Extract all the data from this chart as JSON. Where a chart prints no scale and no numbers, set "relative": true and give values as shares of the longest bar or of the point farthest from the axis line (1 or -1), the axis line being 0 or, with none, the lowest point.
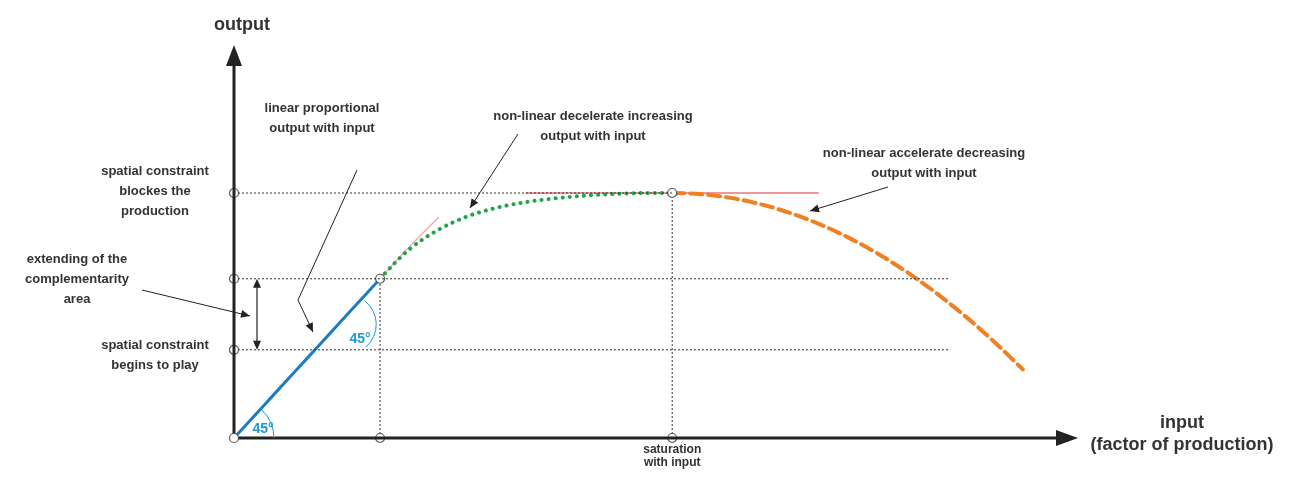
{
  "chart_data": {
    "type": "line",
    "relative": true,
    "xlabel": "input (factor of production)",
    "categories": [
      null,
      null,
      null,
      null,
      null,
      null,
      null,
      null,
      null,
      null,
      null,
      null,
      null,
      null,
      null,
      null,
      null,
      null,
      null,
      null,
      null,
      null,
      null,
      null,
      null,
      null,
      null,
      null,
      null
    ],
    "series": [
      {
        "color": "#1b7cc3",
        "line_style": "solid",
        "values": [
          0,
          0.13,
          0.26,
          0.39,
          0.52,
          0.65,
          null,
          null,
          null,
          null,
          null,
          null,
          null,
          null,
          null,
          null,
          null,
          null,
          null,
          null,
          null,
          null,
          null,
          null,
          null,
          null,
          null,
          null,
          null
        ]
      },
      {
        "color": "#f3a0a5",
        "line_style": "solid",
        "values": [
          null,
          null,
          null,
          null,
          null,
          0.65,
          0.78,
          0.9,
          null,
          null,
          null,
          null,
          null,
          null,
          null,
          null,
          null,
          null,
          null,
          null,
          null,
          null,
          null,
          null,
          null,
          null,
          null,
          null,
          null
        ]
      },
      {
        "color": "#e0303a",
        "line_style": "solid",
        "values": [
          null,
          null,
          null,
          null,
          null,
          null,
          null,
          null,
          null,
          null,
          1,
          1,
          1,
          1,
          1,
          1,
          1,
          1,
          1,
          1,
          1,
          null,
          null,
          null,
          null,
          null,
          null,
          null,
          null
        ]
      },
      {
        "color": "#20a34a",
        "line_style": "dotted",
        "values": [
          null,
          null,
          null,
          null,
          null,
          0.65,
          0.77,
          0.85,
          0.905,
          0.94,
          0.963,
          0.978,
          0.989,
          0.996,
          1,
          1,
          null,
          null,
          null,
          null,
          null,
          null,
          null,
          null,
          null,
          null,
          null,
          null,
          null
        ]
      },
      {
        "color": "#f08020",
        "line_style": "dashed",
        "values": [
          null,
          null,
          null,
          null,
          null,
          null,
          null,
          null,
          null,
          null,
          null,
          null,
          null,
          null,
          null,
          1,
          0.995,
          0.98,
          0.955,
          0.92,
          0.875,
          0.82,
          0.755,
          0.68,
          0.595,
          0.5,
          0.395,
          0.28,
          null
        ]
      }
    ],
    "ref_lines": [
      {
        "axis": "y",
        "value": 1,
        "label": "spatial constraint blockes the production",
        "line_style": "dotted",
        "color": "#333333"
      },
      {
        "axis": "y",
        "value": 0.65,
        "line_style": "dotted",
        "color": "#333333"
      },
      {
        "axis": "y",
        "value": 0.36,
        "label": "spatial constraint begins to play",
        "line_style": "dotted",
        "color": "#333333"
      }
    ],
    "annotations": [
      "linear proportional output with input",
      "non-linear decelerate increasing output with input",
      "non-linear accelerate decreasing output with input",
      "extending of the complementarity area",
      "45°",
      "45°",
      "saturation with input",
      "output"
    ],
    "marker": "none",
    "grid": false,
    "legend": false
  }
}
